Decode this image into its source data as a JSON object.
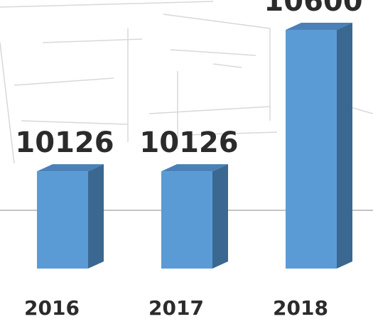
{
  "chart_data": {
    "type": "bar",
    "categories": [
      "2016",
      "2017",
      "2018"
    ],
    "values": [
      10126,
      10126,
      10600
    ],
    "ylim": [
      9800,
      10600
    ],
    "color": "#5b9bd5"
  }
}
